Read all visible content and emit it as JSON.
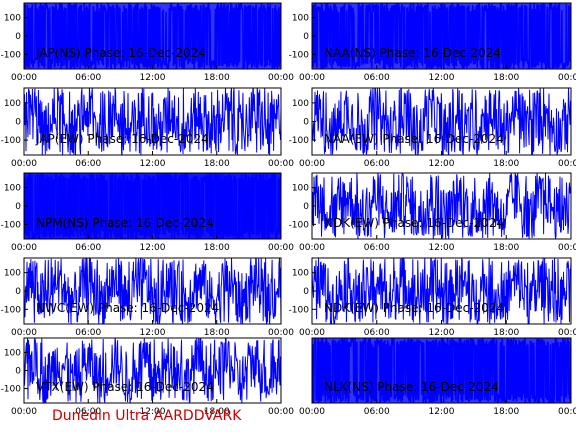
{
  "colors": {
    "trace": "#0000ff",
    "axis": "#000000",
    "footer": "#cc0000"
  },
  "footer": "Dunedin Ultra AARDDVARK",
  "chart_data": [
    {
      "type": "line",
      "title": "JAP(NS) Phase: 16-Dec-2024",
      "x_ticks": [
        "00:00",
        "06:00",
        "12:00",
        "18:00",
        "00:00"
      ],
      "y_ticks": [
        "100",
        "0",
        "-100"
      ],
      "ylim": [
        -180,
        180
      ],
      "xlim_hours": [
        0,
        24
      ],
      "style": "saturated"
    },
    {
      "type": "line",
      "title": "NAA(NS) Phase: 16-Dec-2024",
      "x_ticks": [
        "00:00",
        "06:00",
        "12:00",
        "18:00",
        "00:00"
      ],
      "y_ticks": [
        "100",
        "0",
        "-100"
      ],
      "ylim": [
        -180,
        180
      ],
      "xlim_hours": [
        0,
        24
      ],
      "style": "saturated"
    },
    {
      "type": "line",
      "title": "JAP(EW) Phase: 16-Dec-2024",
      "x_ticks": [
        "00:00",
        "06:00",
        "12:00",
        "18:00",
        "00:00"
      ],
      "y_ticks": [
        "100",
        "0",
        "-100"
      ],
      "ylim": [
        -180,
        180
      ],
      "xlim_hours": [
        0,
        24
      ],
      "style": "noisy"
    },
    {
      "type": "line",
      "title": "NAA(EW) Phase: 16-Dec-2024",
      "x_ticks": [
        "00:00",
        "06:00",
        "12:00",
        "18:00",
        "00:00"
      ],
      "y_ticks": [
        "100",
        "0",
        "-100"
      ],
      "ylim": [
        -180,
        180
      ],
      "xlim_hours": [
        0,
        24
      ],
      "style": "noisy"
    },
    {
      "type": "line",
      "title": "NPM(NS) Phase: 16-Dec-2024",
      "x_ticks": [
        "00:00",
        "06:00",
        "12:00",
        "18:00",
        "00:00"
      ],
      "y_ticks": [
        "100",
        "0",
        "-100"
      ],
      "ylim": [
        -180,
        180
      ],
      "xlim_hours": [
        0,
        24
      ],
      "style": "full"
    },
    {
      "type": "line",
      "title": "NDK(EW) Phase: 16-Dec-2024",
      "x_ticks": [
        "00:00",
        "06:00",
        "12:00",
        "18:00",
        "00:00"
      ],
      "y_ticks": [
        "100",
        "0",
        "-100"
      ],
      "ylim": [
        -180,
        180
      ],
      "xlim_hours": [
        0,
        24
      ],
      "style": "noisy"
    },
    {
      "type": "line",
      "title": "NWC(EW) Phase: 16-Dec-2024",
      "x_ticks": [
        "00:00",
        "06:00",
        "12:00",
        "18:00",
        "00:00"
      ],
      "y_ticks": [
        "100",
        "0",
        "-100"
      ],
      "ylim": [
        -180,
        180
      ],
      "xlim_hours": [
        0,
        24
      ],
      "style": "noisy"
    },
    {
      "type": "line",
      "title": "NDK(EW) Phase: 16-Dec-2024",
      "x_ticks": [
        "00:00",
        "06:00",
        "12:00",
        "18:00",
        "00:00"
      ],
      "y_ticks": [
        "100",
        "0",
        "-100"
      ],
      "ylim": [
        -180,
        180
      ],
      "xlim_hours": [
        0,
        24
      ],
      "style": "noisy"
    },
    {
      "type": "line",
      "title": "VTX(EW) Phase: 16-Dec-2024",
      "x_ticks": [
        "00:00",
        "06:00",
        "12:00",
        "18:00",
        "00:00"
      ],
      "y_ticks": [
        "100",
        "0",
        "-100"
      ],
      "ylim": [
        -180,
        180
      ],
      "xlim_hours": [
        0,
        24
      ],
      "style": "noisy"
    },
    {
      "type": "line",
      "title": "NLK(NS) Phase: 16-Dec-2024",
      "x_ticks": [
        "00:00",
        "06:00",
        "12:00",
        "18:00",
        "00:00"
      ],
      "y_ticks": [],
      "ylim": [
        -180,
        180
      ],
      "xlim_hours": [
        0,
        24
      ],
      "style": "saturated"
    }
  ]
}
